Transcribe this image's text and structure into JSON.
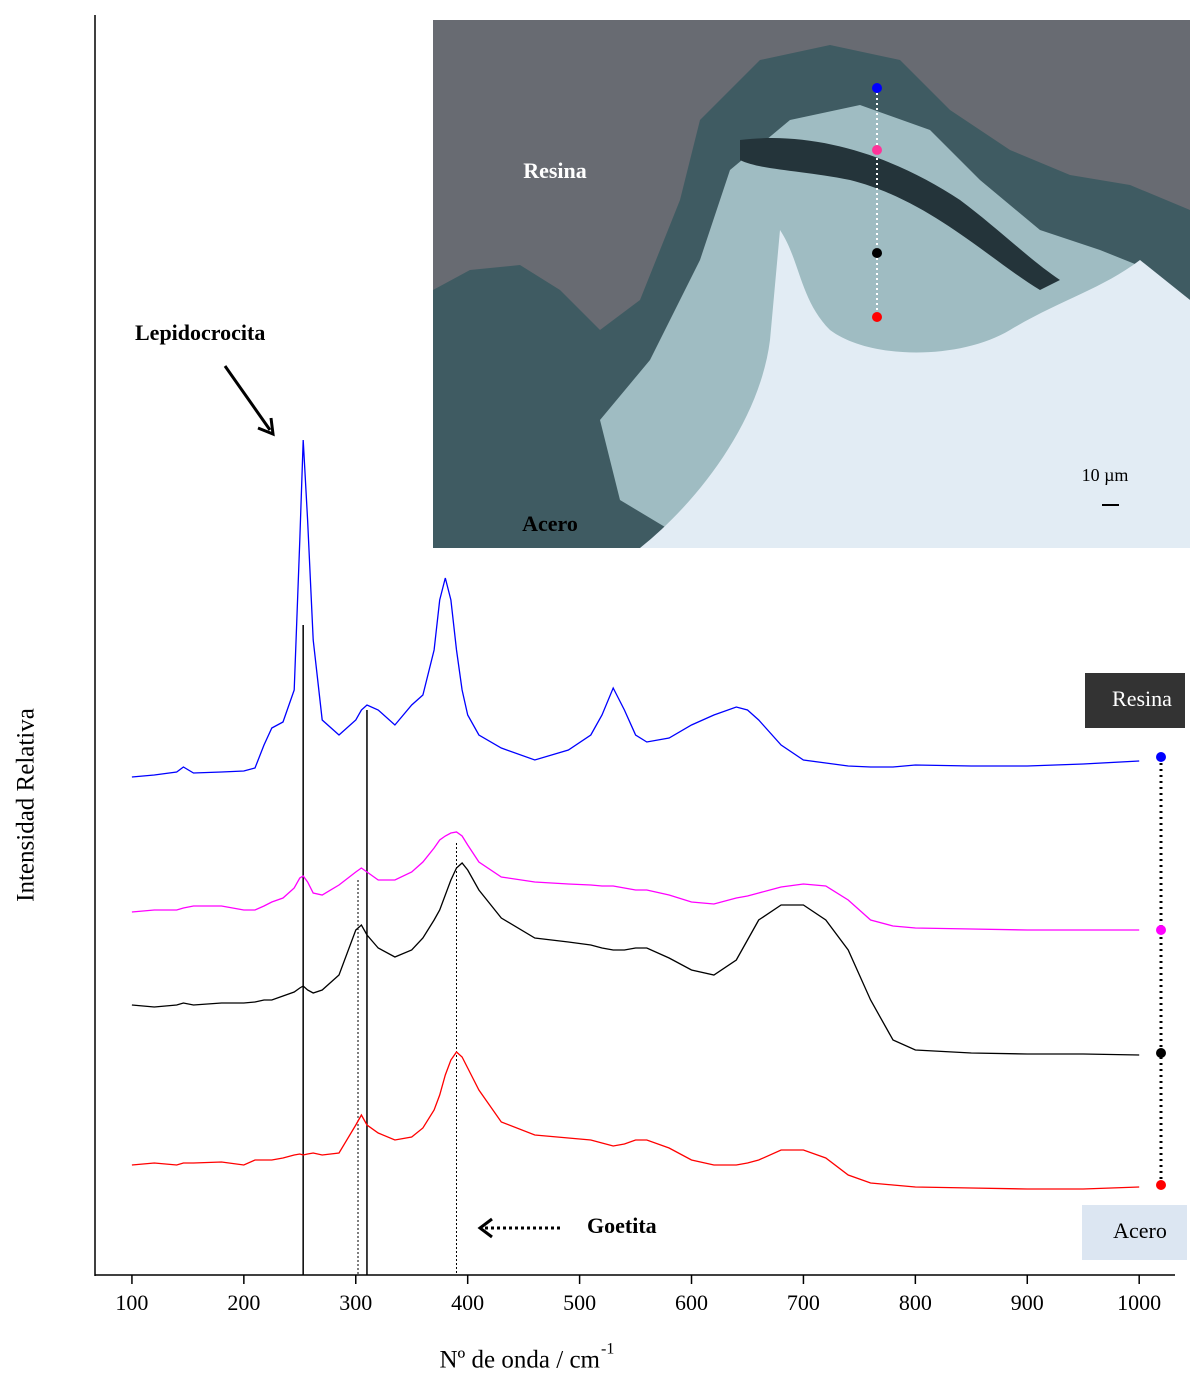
{
  "chart_data": {
    "type": "line",
    "y_label": "Intensidad Relativa",
    "x_label": "Nº de onda / cm",
    "x_label_sup": "-1",
    "xlim": [
      67,
      1032
    ],
    "xticks": [
      100,
      200,
      300,
      400,
      500,
      600,
      700,
      800,
      900,
      1000
    ],
    "ylim": [
      0,
      1260
    ],
    "x": [
      100,
      120,
      140,
      146,
      155,
      180,
      200,
      210,
      218,
      225,
      235,
      245,
      250,
      253,
      257,
      262,
      270,
      285,
      300,
      305,
      310,
      320,
      335,
      350,
      360,
      370,
      375,
      380,
      385,
      390,
      395,
      400,
      410,
      430,
      460,
      490,
      510,
      520,
      530,
      540,
      550,
      560,
      580,
      600,
      620,
      640,
      650,
      660,
      680,
      700,
      720,
      740,
      760,
      780,
      800,
      850,
      900,
      950,
      1000
    ],
    "series": [
      {
        "color": "#0000ff",
        "values": [
          498,
          500,
          503,
          508,
          502,
          503,
          504,
          507,
          530,
          547,
          553,
          585,
          735,
          835,
          755,
          635,
          555,
          540,
          555,
          565,
          570,
          565,
          550,
          570,
          580,
          625,
          675,
          697,
          675,
          625,
          585,
          560,
          540,
          527,
          515,
          525,
          540,
          560,
          587,
          565,
          540,
          533,
          537,
          550,
          560,
          568,
          565,
          555,
          530,
          515,
          512,
          509,
          508,
          508,
          510,
          509,
          509,
          511,
          514
        ]
      },
      {
        "color": "#ff00ff",
        "values": [
          363,
          365,
          365,
          367,
          369,
          369,
          365,
          365,
          369,
          373,
          377,
          387,
          397,
          399,
          393,
          382,
          380,
          390,
          403,
          407,
          403,
          395,
          395,
          403,
          413,
          427,
          435,
          439,
          442,
          443,
          439,
          430,
          413,
          398,
          393,
          391,
          390,
          389,
          389,
          387,
          385,
          385,
          380,
          373,
          371,
          377,
          379,
          382,
          388,
          391,
          389,
          375,
          355,
          349,
          347,
          346,
          345,
          345,
          345
        ]
      },
      {
        "color": "#000000",
        "values": [
          270,
          268,
          270,
          272,
          270,
          272,
          272,
          273,
          275,
          275,
          279,
          283,
          287,
          289,
          285,
          282,
          285,
          300,
          345,
          350,
          340,
          327,
          318,
          325,
          337,
          355,
          365,
          380,
          395,
          407,
          412,
          405,
          385,
          357,
          337,
          333,
          330,
          327,
          325,
          325,
          327,
          327,
          317,
          305,
          300,
          315,
          335,
          355,
          370,
          370,
          355,
          325,
          275,
          235,
          225,
          222,
          221,
          221,
          220
        ]
      },
      {
        "color": "#ff0000",
        "values": [
          110,
          112,
          110,
          112,
          112,
          113,
          110,
          115,
          115,
          115,
          117,
          120,
          121,
          120,
          121,
          122,
          120,
          122,
          150,
          160,
          150,
          142,
          135,
          138,
          147,
          165,
          180,
          200,
          215,
          223,
          218,
          207,
          185,
          153,
          140,
          137,
          135,
          132,
          129,
          131,
          135,
          135,
          127,
          115,
          110,
          110,
          112,
          115,
          125,
          125,
          117,
          100,
          92,
          90,
          88,
          87,
          86,
          86,
          88
        ]
      }
    ],
    "reference_lines": [
      {
        "x": 253,
        "top": 650,
        "style": "solid"
      },
      {
        "x": 310,
        "top": 565,
        "style": "solid"
      },
      {
        "x": 302,
        "top": 395,
        "style": "dotted"
      },
      {
        "x": 390,
        "top": 432,
        "style": "dotted"
      }
    ],
    "annotations": [
      "Lepidocrocita",
      "Goetita"
    ],
    "side_labels": [
      "Resina",
      "Acero"
    ],
    "inset": {
      "labels": [
        "Resina",
        "Acero"
      ],
      "scale": "10 µm"
    }
  }
}
